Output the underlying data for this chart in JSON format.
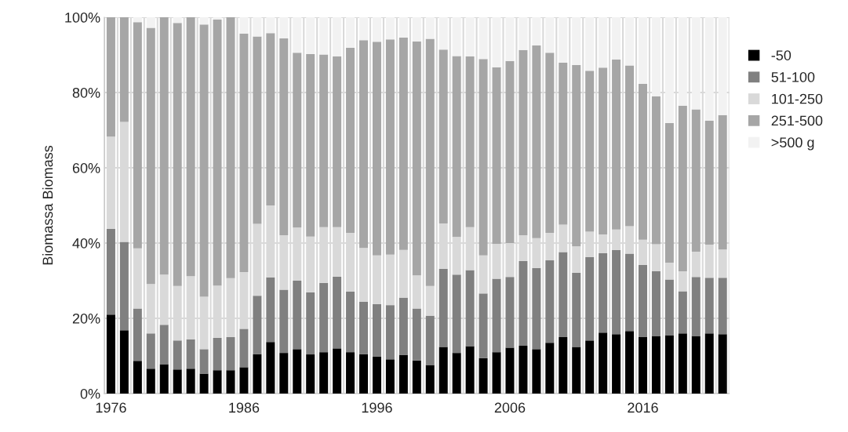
{
  "chart_data": {
    "type": "bar",
    "stacked": true,
    "ylabel": "Biomassa Biomass",
    "categories": [
      "1976",
      null,
      null,
      null,
      null,
      null,
      null,
      null,
      null,
      null,
      "1986",
      null,
      null,
      null,
      null,
      null,
      null,
      null,
      null,
      null,
      "1996",
      null,
      null,
      null,
      null,
      null,
      null,
      null,
      null,
      null,
      "2006",
      null,
      null,
      null,
      null,
      null,
      null,
      null,
      null,
      null,
      "2016",
      null,
      null,
      null,
      null,
      null,
      null
    ],
    "series": [
      {
        "name": "-50",
        "color": "#000000",
        "values": [
          21.0,
          16.8,
          8.7,
          6.6,
          7.8,
          6.4,
          6.6,
          5.3,
          6.2,
          6.2,
          7.0,
          10.5,
          13.7,
          10.8,
          11.8,
          10.4,
          11.0,
          12.0,
          11.0,
          10.5,
          9.8,
          9.1,
          10.3,
          8.8,
          7.6,
          12.4,
          10.8,
          12.6,
          9.4,
          11.0,
          12.2,
          12.7,
          11.8,
          13.5,
          15.0,
          12.4,
          14.1,
          16.2,
          15.8,
          16.6,
          15.0,
          15.3,
          15.5,
          16.0,
          15.3,
          16.0,
          15.8
        ]
      },
      {
        "name": "51-100",
        "color": "#808080",
        "values": [
          22.8,
          23.5,
          13.9,
          9.4,
          10.5,
          7.7,
          7.8,
          6.5,
          8.6,
          8.8,
          10.2,
          15.5,
          17.2,
          16.8,
          18.2,
          16.5,
          18.4,
          19.1,
          16.1,
          13.9,
          14.0,
          14.4,
          15.2,
          13.8,
          13.1,
          20.8,
          20.8,
          20.2,
          17.2,
          19.5,
          18.8,
          22.5,
          21.6,
          21.9,
          22.6,
          19.7,
          22.2,
          21.1,
          22.4,
          20.6,
          19.2,
          17.2,
          14.8,
          11.2,
          15.7,
          14.8,
          15.0
        ]
      },
      {
        "name": "101-250",
        "color": "#d9d9d9",
        "values": [
          24.5,
          31.9,
          16.0,
          13.1,
          13.3,
          14.5,
          16.8,
          13.9,
          13.9,
          15.7,
          15.1,
          19.1,
          19.1,
          14.5,
          14.1,
          14.8,
          14.8,
          13.1,
          15.6,
          14.3,
          12.9,
          13.4,
          12.7,
          8.8,
          7.9,
          12.0,
          10.0,
          11.4,
          10.1,
          9.3,
          9.0,
          6.9,
          7.9,
          7.3,
          7.3,
          7.0,
          6.7,
          5.0,
          5.4,
          7.3,
          6.7,
          7.2,
          4.5,
          5.3,
          6.7,
          8.8,
          7.5
        ]
      },
      {
        "name": "251-500",
        "color": "#a6a6a6",
        "values": [
          31.7,
          27.8,
          60.1,
          68.1,
          68.4,
          69.9,
          68.8,
          72.4,
          70.7,
          69.3,
          63.4,
          49.8,
          45.8,
          52.3,
          46.5,
          48.5,
          45.9,
          45.4,
          49.2,
          55.2,
          56.8,
          57.2,
          56.4,
          62.2,
          65.7,
          46.2,
          48.1,
          45.4,
          52.2,
          46.9,
          48.4,
          49.2,
          51.2,
          47.9,
          43.0,
          48.2,
          42.8,
          44.3,
          45.2,
          42.7,
          41.4,
          39.3,
          37.1,
          44.0,
          37.8,
          32.9,
          35.7
        ]
      },
      {
        "name": ">500 g",
        "color": "#f2f2f2",
        "values": [
          0,
          0,
          1.3,
          2.8,
          0,
          1.5,
          0,
          1.9,
          0.6,
          0,
          4.3,
          5.1,
          4.2,
          5.6,
          9.4,
          9.8,
          9.9,
          10.4,
          8.1,
          6.1,
          6.5,
          5.9,
          5.4,
          6.4,
          5.7,
          8.6,
          10.3,
          10.4,
          11.1,
          13.3,
          11.6,
          8.7,
          7.5,
          9.4,
          12.1,
          12.7,
          14.2,
          13.4,
          11.2,
          12.8,
          17.7,
          21.0,
          28.1,
          23.5,
          24.5,
          27.5,
          26.0
        ]
      }
    ],
    "ylim": [
      0,
      100
    ],
    "yticks": [
      {
        "value": 0,
        "label": "0%"
      },
      {
        "value": 20,
        "label": "20%"
      },
      {
        "value": 40,
        "label": "40%"
      },
      {
        "value": 60,
        "label": "60%"
      },
      {
        "value": 80,
        "label": "80%"
      },
      {
        "value": 100,
        "label": "100%"
      }
    ],
    "grid": true,
    "legend": "right"
  }
}
